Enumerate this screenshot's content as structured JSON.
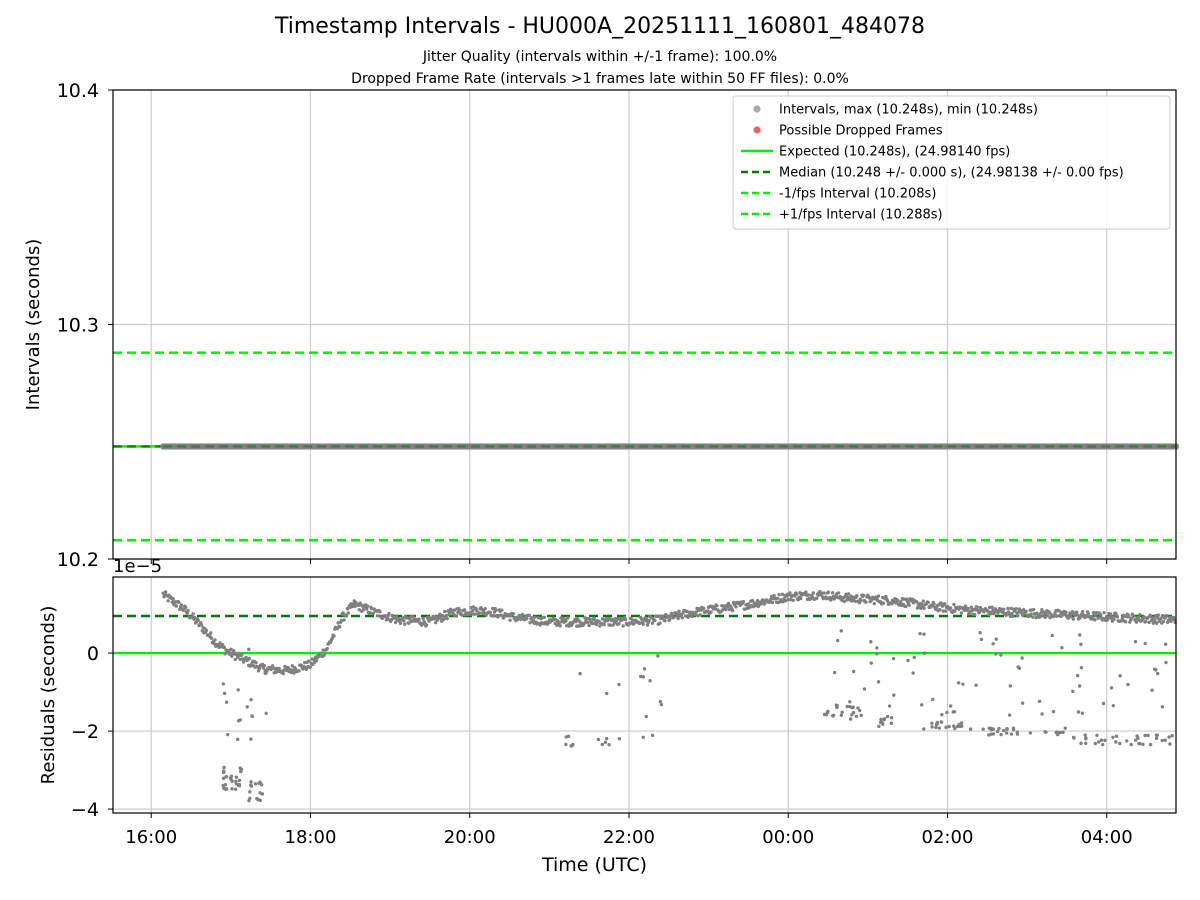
{
  "figure": {
    "title": "Timestamp Intervals - HU000A_20251111_160801_484078",
    "subtitle_1": "Jitter Quality (intervals within +/-1 frame): 100.0%",
    "subtitle_2": "Dropped Frame Rate (intervals >1 frames late within 50 FF files): 0.0%"
  },
  "colors": {
    "intervals": "#808080",
    "dropped": "#f05050",
    "expected": "#00ee00",
    "median": "#007a00",
    "fps_interval": "#00ee00",
    "grid": "#cccccc"
  },
  "chart_data": [
    {
      "type": "scatter",
      "ylabel": "Intervals (seconds)",
      "ylim": [
        10.2,
        10.4
      ],
      "yticks": [
        10.2,
        10.3,
        10.4
      ],
      "ytick_labels": [
        "10.2",
        "10.3",
        "10.4"
      ],
      "xlim_hours": [
        15.52,
        28.87
      ],
      "grid": true,
      "legend_position": "top-right",
      "legend": [
        {
          "label": "Intervals, max (10.248s), min (10.248s)",
          "kind": "dot",
          "color": "#aaaaaa"
        },
        {
          "label": "Possible Dropped Frames",
          "kind": "dot",
          "color": "#f06060"
        },
        {
          "label": "Expected (10.248s), (24.98140 fps)",
          "kind": "line",
          "color": "#00ee00"
        },
        {
          "label": "Median (10.248 +/- 0.000 s), (24.98138 +/- 0.00 fps)",
          "kind": "dash",
          "color": "#007a00"
        },
        {
          "label": "-1/fps Interval (10.208s)",
          "kind": "dash",
          "color": "#00ee00"
        },
        {
          "label": "+1/fps Interval (10.288s)",
          "kind": "dash",
          "color": "#00ee00"
        }
      ],
      "reference_lines": [
        {
          "y": 10.248,
          "style": "solid",
          "color": "#00ee00"
        },
        {
          "y": 10.248,
          "style": "dash",
          "color": "#007a00"
        },
        {
          "y": 10.208,
          "style": "dash",
          "color": "#00ee00"
        },
        {
          "y": 10.288,
          "style": "dash",
          "color": "#00ee00"
        }
      ],
      "intervals_series": {
        "x_start_hours": 16.15,
        "x_end_hours": 28.87,
        "y": 10.248
      },
      "dropped_frames": []
    },
    {
      "type": "scatter",
      "ylabel": "Residuals (seconds)",
      "xlabel": "Time (UTC)",
      "offset_label": "1e−5",
      "ylim": [
        -4.1,
        1.95
      ],
      "yticks": [
        -4,
        -2,
        0
      ],
      "ytick_labels": [
        "−4",
        "−2",
        "0"
      ],
      "xlim_hours": [
        15.52,
        28.87
      ],
      "xticks_hours": [
        16,
        18,
        20,
        22,
        24,
        26,
        28
      ],
      "xtick_labels": [
        "16:00",
        "18:00",
        "20:00",
        "22:00",
        "00:00",
        "02:00",
        "04:00"
      ],
      "grid": true,
      "reference_lines": [
        {
          "y": 0,
          "style": "solid",
          "color": "#00ee00"
        },
        {
          "y": 0.95,
          "style": "dash",
          "color": "#007a00"
        }
      ],
      "main_trend": [
        [
          16.15,
          1.5
        ],
        [
          16.4,
          1.15
        ],
        [
          16.6,
          0.75
        ],
        [
          16.8,
          0.3
        ],
        [
          16.95,
          0.05
        ],
        [
          17.15,
          -0.15
        ],
        [
          17.4,
          -0.4
        ],
        [
          17.7,
          -0.45
        ],
        [
          18.0,
          -0.3
        ],
        [
          18.2,
          0.1
        ],
        [
          18.4,
          0.9
        ],
        [
          18.55,
          1.25
        ],
        [
          18.8,
          1.05
        ],
        [
          19.1,
          0.85
        ],
        [
          19.5,
          0.8
        ],
        [
          19.8,
          1.05
        ],
        [
          20.1,
          1.1
        ],
        [
          20.3,
          1.05
        ],
        [
          20.6,
          0.9
        ],
        [
          21.0,
          0.8
        ],
        [
          21.5,
          0.8
        ],
        [
          22.0,
          0.8
        ],
        [
          22.4,
          0.85
        ],
        [
          22.7,
          1.0
        ],
        [
          23.0,
          1.1
        ],
        [
          23.5,
          1.25
        ],
        [
          24.0,
          1.45
        ],
        [
          24.4,
          1.5
        ],
        [
          24.8,
          1.4
        ],
        [
          25.3,
          1.35
        ],
        [
          25.8,
          1.2
        ],
        [
          26.3,
          1.1
        ],
        [
          26.8,
          1.05
        ],
        [
          27.3,
          1.0
        ],
        [
          27.8,
          0.95
        ],
        [
          28.3,
          0.9
        ],
        [
          28.87,
          0.85
        ]
      ],
      "outlier_clusters": [
        {
          "x_range": [
            16.9,
            17.15
          ],
          "y_range": [
            -3.5,
            -2.9
          ],
          "n": 30
        },
        {
          "x_range": [
            17.2,
            17.4
          ],
          "y_range": [
            -3.8,
            -3.3
          ],
          "n": 15
        },
        {
          "x_range": [
            16.85,
            17.45
          ],
          "y_range": [
            -2.5,
            0.2
          ],
          "n": 18
        },
        {
          "x_range": [
            21.2,
            21.3
          ],
          "y_range": [
            -2.4,
            -2.1
          ],
          "n": 6
        },
        {
          "x_range": [
            21.6,
            21.75
          ],
          "y_range": [
            -2.4,
            -2.1
          ],
          "n": 5
        },
        {
          "x_range": [
            21.2,
            22.6
          ],
          "y_range": [
            -2.2,
            0.2
          ],
          "n": 14
        },
        {
          "x_range": [
            24.45,
            24.9
          ],
          "y_range": [
            -1.7,
            -1.3
          ],
          "n": 22
        },
        {
          "x_range": [
            25.0,
            25.3
          ],
          "y_range": [
            -1.9,
            -1.6
          ],
          "n": 12
        },
        {
          "x_range": [
            25.7,
            26.3
          ],
          "y_range": [
            -1.95,
            -1.75
          ],
          "n": 20
        },
        {
          "x_range": [
            26.4,
            27.5
          ],
          "y_range": [
            -2.1,
            -1.9
          ],
          "n": 30
        },
        {
          "x_range": [
            27.5,
            28.87
          ],
          "y_range": [
            -2.35,
            -2.1
          ],
          "n": 36
        },
        {
          "x_range": [
            24.45,
            28.87
          ],
          "y_range": [
            -1.6,
            0.6
          ],
          "n": 70
        }
      ]
    }
  ]
}
